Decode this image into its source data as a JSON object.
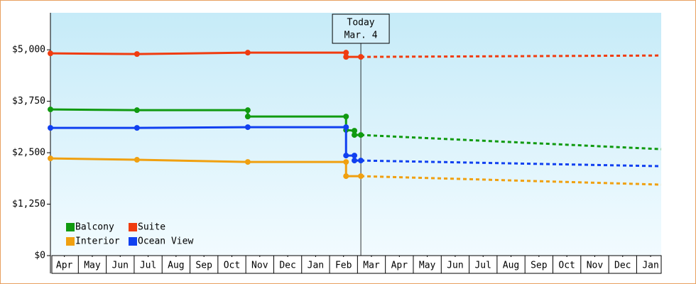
{
  "chart_data": {
    "type": "line",
    "xlim": [
      0,
      21.88
    ],
    "ylim": [
      0,
      5900
    ],
    "yticks": [
      {
        "value": 0,
        "label": "$0"
      },
      {
        "value": 1250,
        "label": "$1,250"
      },
      {
        "value": 2500,
        "label": "$2,500"
      },
      {
        "value": 3750,
        "label": "$3,750"
      },
      {
        "value": 5000,
        "label": "$5,000"
      }
    ],
    "xticks": [
      {
        "value": 0.5,
        "label": "Apr"
      },
      {
        "value": 1.5,
        "label": "May"
      },
      {
        "value": 2.5,
        "label": "Jun"
      },
      {
        "value": 3.5,
        "label": "Jul"
      },
      {
        "value": 4.5,
        "label": "Aug"
      },
      {
        "value": 5.5,
        "label": "Sep"
      },
      {
        "value": 6.5,
        "label": "Oct"
      },
      {
        "value": 7.5,
        "label": "Nov"
      },
      {
        "value": 8.5,
        "label": "Dec"
      },
      {
        "value": 9.5,
        "label": "Jan"
      },
      {
        "value": 10.5,
        "label": "Feb"
      },
      {
        "value": 11.5,
        "label": "Mar"
      },
      {
        "value": 12.5,
        "label": "Apr"
      },
      {
        "value": 13.5,
        "label": "May"
      },
      {
        "value": 14.5,
        "label": "Jun"
      },
      {
        "value": 15.5,
        "label": "Jul"
      },
      {
        "value": 16.5,
        "label": "Aug"
      },
      {
        "value": 17.5,
        "label": "Sep"
      },
      {
        "value": 18.5,
        "label": "Oct"
      },
      {
        "value": 19.5,
        "label": "Nov"
      },
      {
        "value": 20.5,
        "label": "Dec"
      },
      {
        "value": 21.5,
        "label": "Jan"
      }
    ],
    "today": {
      "x": 11.12,
      "label": "Today",
      "date": "Mar. 4"
    },
    "forecast_x": [
      11.12,
      21.88
    ],
    "series": [
      {
        "name": "Balcony",
        "color": "#109a10",
        "x": [
          0,
          3.1,
          7.07,
          7.07,
          10.59,
          10.59,
          10.89,
          10.89,
          11.12
        ],
        "values": [
          3552,
          3534,
          3534,
          3379,
          3379,
          3052,
          3035,
          2931,
          2931
        ],
        "forecast": [
          2931,
          2586
        ]
      },
      {
        "name": "Suite",
        "color": "#f03c10",
        "x": [
          0,
          3.1,
          7.07,
          10.59,
          10.59,
          11.12
        ],
        "values": [
          4914,
          4897,
          4931,
          4931,
          4828,
          4828
        ],
        "forecast": [
          4828,
          4862
        ]
      },
      {
        "name": "Interior",
        "color": "#f0a010",
        "x": [
          0,
          3.1,
          7.07,
          10.59,
          10.59,
          11.12
        ],
        "values": [
          2362,
          2328,
          2276,
          2276,
          1931,
          1931
        ],
        "forecast": [
          1931,
          1724
        ]
      },
      {
        "name": "Ocean View",
        "color": "#1040f0",
        "x": [
          0,
          3.1,
          7.07,
          10.59,
          10.59,
          10.89,
          10.89,
          11.12
        ],
        "values": [
          3103,
          3103,
          3121,
          3121,
          2431,
          2431,
          2310,
          2310
        ],
        "forecast": [
          2310,
          2172
        ]
      }
    ]
  }
}
